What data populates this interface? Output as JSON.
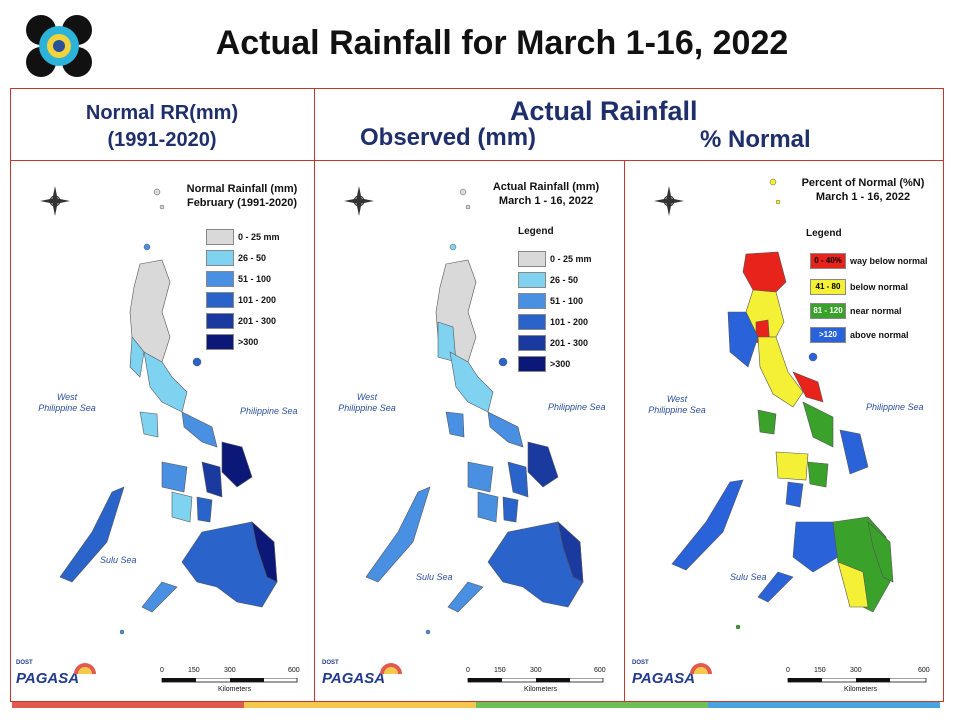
{
  "title": "Actual Rainfall for March 1-16, 2022",
  "header": {
    "left_line1": "Normal RR(mm)",
    "left_line2": "(1991-2020)",
    "actual": "Actual Rainfall",
    "observed": "Observed (mm)",
    "percent": "% Normal"
  },
  "panels": [
    {
      "title_line1": "Normal Rainfall (mm)",
      "title_line2": "February (1991-2020)",
      "legend_title": "",
      "legend": [
        {
          "label": "0 - 25 mm",
          "color": "#d9d9d9"
        },
        {
          "label": "26 - 50",
          "color": "#7fd3f0"
        },
        {
          "label": "51 - 100",
          "color": "#4a90e2"
        },
        {
          "label": "101 - 200",
          "color": "#2a63c9"
        },
        {
          "label": "201 - 300",
          "color": "#1a3aa0"
        },
        {
          "label": ">300",
          "color": "#0c1878"
        }
      ]
    },
    {
      "title_line1": "Actual Rainfall (mm)",
      "title_line2": "March 1 - 16, 2022",
      "legend_title": "Legend",
      "legend": [
        {
          "label": "0 - 25 mm",
          "color": "#d9d9d9"
        },
        {
          "label": "26 - 50",
          "color": "#7fd3f0"
        },
        {
          "label": "51 - 100",
          "color": "#4a90e2"
        },
        {
          "label": "101 - 200",
          "color": "#2a63c9"
        },
        {
          "label": "201 - 300",
          "color": "#1a3aa0"
        },
        {
          "label": ">300",
          "color": "#0c1878"
        }
      ]
    },
    {
      "title_line1": "Percent of Normal (%N)",
      "title_line2": "March 1 - 16, 2022",
      "legend_title": "Legend",
      "legend": [
        {
          "label": "way below normal",
          "range": "0 - 40%",
          "color": "#e8231b"
        },
        {
          "label": "below normal",
          "range": "41 - 80",
          "color": "#f4f035"
        },
        {
          "label": "near normal",
          "range": "81 - 120",
          "color": "#3aa12a"
        },
        {
          "label": "above normal",
          "range": ">120",
          "color": "#2a63d9"
        }
      ]
    }
  ],
  "map_labels": {
    "west_sea_1": "West",
    "west_sea_2": "Philippine Sea",
    "east_sea": "Philippine Sea",
    "sulu": "Sulu Sea",
    "compass_n": "N",
    "compass_s": "S",
    "compass_e": "E",
    "compass_w": "W"
  },
  "scale": {
    "ticks": [
      "0",
      "150",
      "300",
      "600"
    ],
    "unit": "Kilometers"
  },
  "footer": {
    "org": "PAGASA",
    "dost": "DOST",
    "tag": "The Weather and Climate Authority"
  },
  "colors": {
    "frame": "#c0392b",
    "header_text": "#1f2f6b",
    "footer_stripes": [
      "#e25a4f",
      "#f2c94c",
      "#6fbf5b",
      "#4aa3df"
    ]
  }
}
